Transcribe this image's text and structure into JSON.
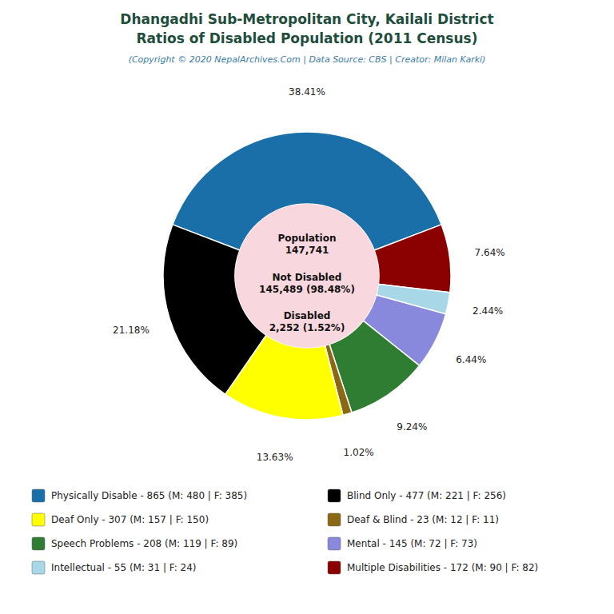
{
  "chart_data": {
    "type": "pie",
    "title": "Dhangadhi Sub-Metropolitan City, Kailali District\nRatios of Disabled Population (2011 Census)",
    "subtitle": "(Copyright © 2020 NepalArchives.Com | Data Source: CBS | Creator: Milan Karki)",
    "categories": [
      "Physically Disable - 865 (M: 480 | F: 385)",
      "Multiple Disabilities - 172 (M: 90 | F: 82)",
      "Intellectual - 55 (M: 31 | F: 24)",
      "Mental - 145 (M: 72 | F: 73)",
      "Speech Problems - 208 (M: 119 | F: 89)",
      "Deaf & Blind - 23 (M: 12 | F: 11)",
      "Deaf Only - 307 (M: 157 | F: 150)",
      "Blind Only - 477 (M: 221 | F: 256)"
    ],
    "values": [
      38.41,
      7.64,
      2.44,
      6.44,
      9.24,
      1.02,
      13.63,
      21.18
    ],
    "value_labels": [
      "38.41%",
      "7.64%",
      "2.44%",
      "6.44%",
      "9.24%",
      "1.02%",
      "13.63%",
      "21.18%"
    ],
    "colors": [
      "#1a6fa8",
      "#8b0000",
      "#a8d8e8",
      "#8888dd",
      "#2e7d32",
      "#8b6914",
      "#ffff00",
      "#000000"
    ],
    "data_labels": true,
    "annotations": [
      "Population\n147,741",
      "Not Disabled\n145,489 (98.48%)",
      "Disabled\n2,252 (1.52%)"
    ]
  }
}
